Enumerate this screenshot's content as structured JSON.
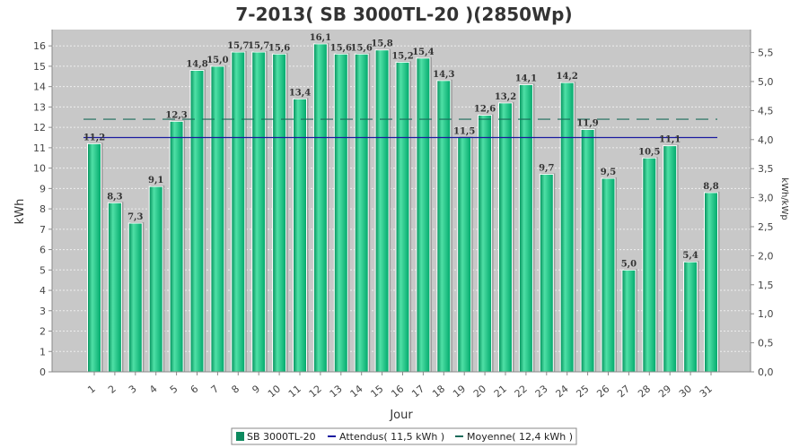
{
  "chart_data": {
    "type": "bar",
    "title": "7-2013( SB 3000TL-20 )(2850Wp)",
    "xlabel": "Jour",
    "ylabel": "kWh",
    "y2label": "kWh/kWp",
    "ylim": [
      0,
      16.8
    ],
    "y2lim": [
      0,
      5.895
    ],
    "yticks": [
      "0",
      "1",
      "2",
      "3",
      "4",
      "5",
      "6",
      "7",
      "8",
      "9",
      "10",
      "11",
      "12",
      "13",
      "14",
      "15",
      "16"
    ],
    "y2ticks": [
      "0,0",
      "0,5",
      "1,0",
      "1,5",
      "2,0",
      "2,5",
      "3,0",
      "3,5",
      "4,0",
      "4,5",
      "5,0",
      "5,5"
    ],
    "categories": [
      "1",
      "2",
      "3",
      "4",
      "5",
      "6",
      "7",
      "8",
      "9",
      "10",
      "11",
      "12",
      "13",
      "14",
      "15",
      "16",
      "17",
      "18",
      "19",
      "20",
      "21",
      "22",
      "23",
      "24",
      "25",
      "26",
      "27",
      "28",
      "29",
      "30",
      "31"
    ],
    "series": [
      {
        "name": "SB 3000TL-20",
        "values": [
          11.2,
          8.3,
          7.3,
          9.1,
          12.3,
          14.8,
          15.0,
          15.7,
          15.7,
          15.6,
          13.4,
          16.1,
          15.6,
          15.6,
          15.8,
          15.2,
          15.4,
          14.3,
          11.5,
          12.6,
          13.2,
          14.1,
          9.7,
          14.2,
          11.9,
          9.5,
          5.0,
          10.5,
          11.1,
          5.4,
          8.8
        ],
        "labels": [
          "11,2",
          "8,3",
          "7,3",
          "9,1",
          "12,3",
          "14,8",
          "15,0",
          "15,7",
          "15,7",
          "15,6",
          "13,4",
          "16,1",
          "15,6",
          "15,6",
          "15,8",
          "15,2",
          "15,4",
          "14,3",
          "11,5",
          "12,6",
          "13,2",
          "14,1",
          "9,7",
          "14,2",
          "11,9",
          "9,5",
          "5,0",
          "10,5",
          "11,1",
          "5,4",
          "8,8"
        ],
        "color": "#00a86b"
      }
    ],
    "lines": [
      {
        "name": "Attendus( 11,5 kWh )",
        "value": 11.5,
        "color": "#1a1aa0",
        "style": "solid"
      },
      {
        "name": "Moyenne( 12,4 kWh )",
        "value": 12.4,
        "color": "#1b6b5a",
        "style": "dashed"
      }
    ],
    "grid": true,
    "legend_position": "bottom",
    "colors": {
      "plot_bg": "#c8c8c8",
      "bar_fill": "#00c77f",
      "bar_edge": "#009966",
      "bar_shadow": "#9a9a9a"
    }
  }
}
